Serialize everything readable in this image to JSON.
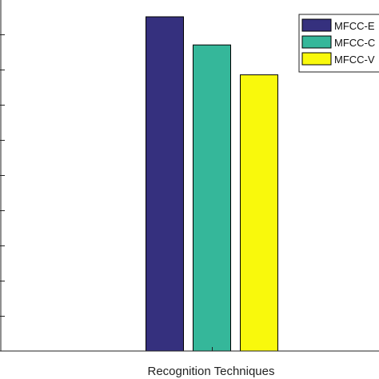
{
  "chart_data": {
    "type": "bar",
    "xlabel": "Recognition Techniques",
    "categories": [
      ""
    ],
    "ylim": [
      0,
      100
    ],
    "grid": false,
    "legend_position": "top-right",
    "series": [
      {
        "name": "MFCC-E",
        "values": [
          95
        ],
        "color": "#35307e"
      },
      {
        "name": "MFCC-C",
        "values": [
          87
        ],
        "color": "#35b79a"
      },
      {
        "name": "MFCC-V",
        "values": [
          78.5
        ],
        "color": "#f9f90c"
      }
    ]
  }
}
